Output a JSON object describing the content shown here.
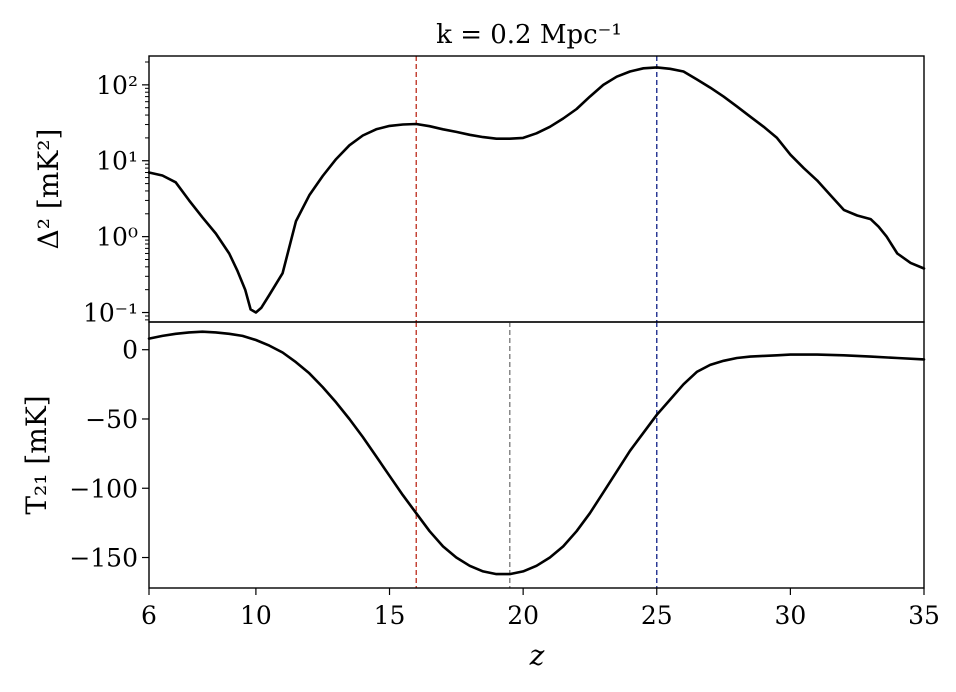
{
  "chart_data": [
    {
      "id": "power_spectrum",
      "type": "line",
      "title": "k = 0.2 Mpc⁻¹",
      "ylabel": "Δ² [mK²]",
      "yscale": "log",
      "xlim": [
        6,
        35
      ],
      "ylim": [
        0.075,
        240
      ],
      "yticks": [
        0.1,
        1,
        10,
        100
      ],
      "ytick_labels": [
        "10⁻¹",
        "10⁰",
        "10¹",
        "10²"
      ],
      "x": [
        6.0,
        6.5,
        7.0,
        7.5,
        8.0,
        8.5,
        9.0,
        9.3,
        9.6,
        9.8,
        10.0,
        10.2,
        10.5,
        11.0,
        11.5,
        12.0,
        12.5,
        13.0,
        13.5,
        14.0,
        14.5,
        15.0,
        15.5,
        16.0,
        16.5,
        17.0,
        17.5,
        18.0,
        18.5,
        19.0,
        19.5,
        20.0,
        20.5,
        21.0,
        21.5,
        22.0,
        22.5,
        23.0,
        23.5,
        24.0,
        24.5,
        25.0,
        25.5,
        26.0,
        26.5,
        27.0,
        27.5,
        28.0,
        28.5,
        29.0,
        29.5,
        30.0,
        30.5,
        31.0,
        31.5,
        32.0,
        32.5,
        33.0,
        33.3,
        33.6,
        34.0,
        34.5,
        35.0
      ],
      "y": [
        7.0,
        6.4,
        5.2,
        3.0,
        1.8,
        1.1,
        0.6,
        0.36,
        0.2,
        0.11,
        0.1,
        0.115,
        0.17,
        0.33,
        1.6,
        3.5,
        6.3,
        10.5,
        16.0,
        21.5,
        26.0,
        28.8,
        30.0,
        30.5,
        28.5,
        26.0,
        24.0,
        22.0,
        20.5,
        19.5,
        19.5,
        20.0,
        23.0,
        28.0,
        36.0,
        48.0,
        70.0,
        100.0,
        128.0,
        150.0,
        165.0,
        170.0,
        163.0,
        150.0,
        118.0,
        92.0,
        70.0,
        52.0,
        38.0,
        28.0,
        20.0,
        12.0,
        8.0,
        5.5,
        3.5,
        2.25,
        1.9,
        1.7,
        1.35,
        1.0,
        0.6,
        0.45,
        0.38
      ]
    },
    {
      "id": "brightness_temperature",
      "type": "line",
      "xlabel": "z",
      "ylabel": "T₂₁ [mK]",
      "xlim": [
        6,
        35
      ],
      "ylim": [
        -172,
        20
      ],
      "xticks": [
        6,
        10,
        15,
        20,
        25,
        30,
        35
      ],
      "xtick_labels": [
        "6",
        "10",
        "15",
        "20",
        "25",
        "30",
        "35"
      ],
      "yticks": [
        0,
        -50,
        -100,
        -150
      ],
      "ytick_labels": [
        "0",
        "−50",
        "−100",
        "−150"
      ],
      "x": [
        6.0,
        6.5,
        7.0,
        7.5,
        8.0,
        8.5,
        9.0,
        9.5,
        10.0,
        10.5,
        11.0,
        11.5,
        12.0,
        12.5,
        13.0,
        13.5,
        14.0,
        14.5,
        15.0,
        15.5,
        16.0,
        16.5,
        17.0,
        17.5,
        18.0,
        18.5,
        19.0,
        19.5,
        20.0,
        20.5,
        21.0,
        21.5,
        22.0,
        22.5,
        23.0,
        23.5,
        24.0,
        24.5,
        25.0,
        25.5,
        26.0,
        26.5,
        27.0,
        27.5,
        28.0,
        28.5,
        29.0,
        29.5,
        30.0,
        31.0,
        32.0,
        33.0,
        34.0,
        35.0
      ],
      "y": [
        8.0,
        10.0,
        11.5,
        12.5,
        13.0,
        12.5,
        11.5,
        10.0,
        7.0,
        3.0,
        -2.0,
        -9.0,
        -17.0,
        -27.0,
        -38.0,
        -50.0,
        -63.0,
        -77.0,
        -91.0,
        -105.0,
        -118.0,
        -131.0,
        -142.0,
        -150.0,
        -156.0,
        -160.0,
        -162.0,
        -162.0,
        -160.0,
        -156.0,
        -150.0,
        -142.0,
        -131.0,
        -118.0,
        -103.0,
        -88.0,
        -73.0,
        -60.0,
        -47.0,
        -36.0,
        -25.0,
        -16.0,
        -11.0,
        -8.0,
        -6.0,
        -5.0,
        -4.5,
        -4.0,
        -3.5,
        -3.5,
        -4.0,
        -5.0,
        -6.0,
        -7.0
      ]
    }
  ],
  "markers": [
    {
      "id": "red",
      "x": 16.0,
      "color": "#c0392b",
      "panels": [
        "top",
        "bottom"
      ]
    },
    {
      "id": "blue",
      "x": 25.0,
      "color": "#1f2f8f",
      "panels": [
        "top",
        "bottom"
      ]
    },
    {
      "id": "gray",
      "x": 19.5,
      "color": "#808080",
      "panels": [
        "bottom"
      ]
    }
  ]
}
